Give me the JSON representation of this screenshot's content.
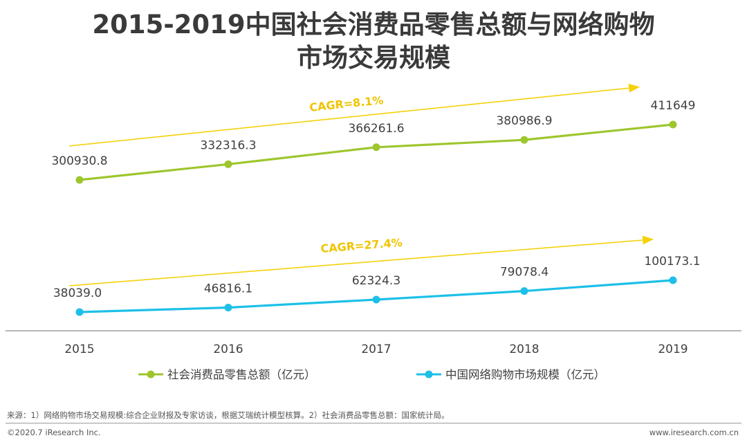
{
  "title_line1": "2015-2019中国社会消费品零售总额与网络购物",
  "title_line2": "市场交易规模",
  "chart_data": {
    "type": "line",
    "categories": [
      "2015",
      "2016",
      "2017",
      "2018",
      "2019"
    ],
    "series": [
      {
        "name": "社会消费品零售总额（亿元）",
        "values": [
          300930.8,
          332316.3,
          366261.6,
          380986.9,
          411649
        ],
        "labels": [
          "300930.8",
          "332316.3",
          "366261.6",
          "380986.9",
          "411649"
        ],
        "color": "#9dc62d"
      },
      {
        "name": "中国网络购物市场规模（亿元）",
        "values": [
          38039.0,
          46816.1,
          62324.3,
          79078.4,
          100173.1
        ],
        "labels": [
          "38039.0",
          "46816.1",
          "62324.3",
          "79078.4",
          "100173.1"
        ],
        "color": "#1cc0e8"
      }
    ],
    "annotations": [
      {
        "text": "CAGR=8.1%",
        "series": 0
      },
      {
        "text": "CAGR=27.4%",
        "series": 1
      }
    ],
    "arrow_color": "#f5d10a",
    "annotation_color": "#f0c400",
    "legend_position": "bottom"
  },
  "footer": {
    "source": "来源：1）网络购物市场交易规模:综合企业财报及专家访谈，根据艾瑞统计模型核算。2）社会消费品零售总额：国家统计局。",
    "copyright": "©2020.7 iResearch Inc.",
    "website": "www.iresearch.com.cn"
  }
}
